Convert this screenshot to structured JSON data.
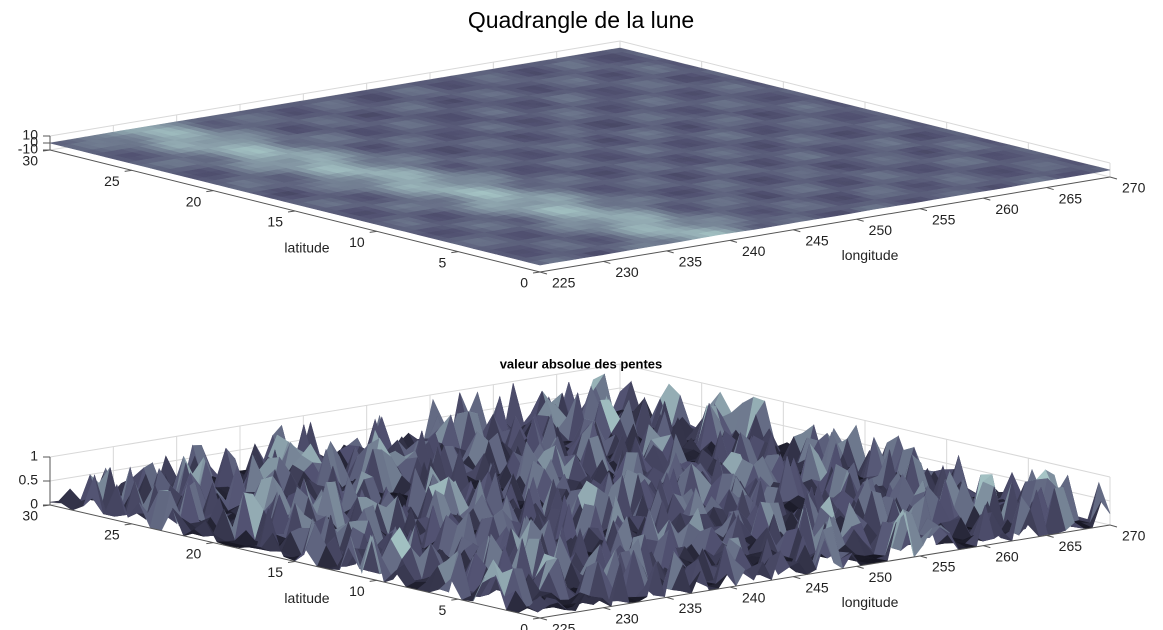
{
  "chart_data": [
    {
      "type": "surface",
      "title": "Quadrangle de la lune",
      "xlabel": "longitude",
      "ylabel": "latitude",
      "xlim": [
        225,
        270
      ],
      "xticks": [
        225,
        230,
        235,
        240,
        245,
        250,
        255,
        260,
        265,
        270
      ],
      "ylim": [
        0,
        30
      ],
      "yticks": [
        0,
        5,
        10,
        15,
        20,
        25,
        30
      ],
      "zlim": [
        -10,
        10
      ],
      "zticks": [
        -10,
        0,
        10
      ],
      "colormap": "bone",
      "grid": true
    },
    {
      "type": "surface",
      "title": "valeur absolue des pentes",
      "xlabel": "longitude",
      "ylabel": "latitude",
      "xlim": [
        225,
        270
      ],
      "xticks": [
        225,
        230,
        235,
        240,
        245,
        250,
        255,
        260,
        265,
        270
      ],
      "ylim": [
        0,
        30
      ],
      "yticks": [
        0,
        5,
        10,
        15,
        20,
        25,
        30
      ],
      "zlim": [
        0,
        1
      ],
      "zticks": [
        0,
        0.5,
        1
      ],
      "colormap": "bone",
      "grid": true
    }
  ]
}
